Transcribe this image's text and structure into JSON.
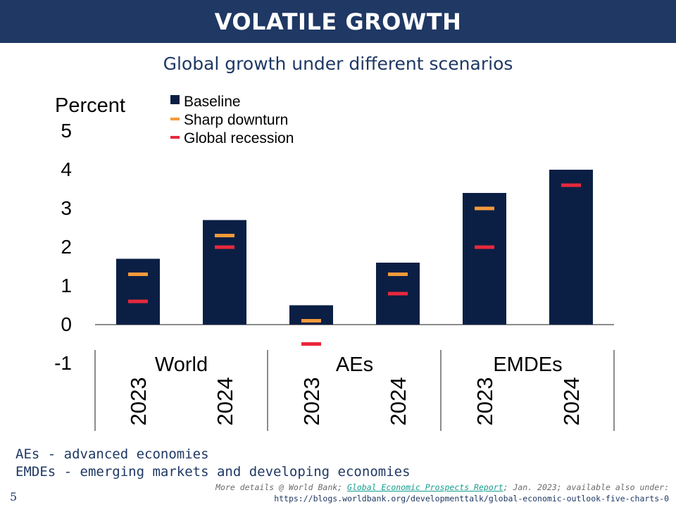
{
  "header": {
    "title": "VOLATILE GROWTH"
  },
  "chart_data": {
    "type": "bar",
    "title": "Global growth under different scenarios",
    "ylabel": "Percent",
    "ylim": [
      -1,
      5
    ],
    "yticks": [
      "5",
      "4",
      "3",
      "2",
      "1",
      "0",
      "-1"
    ],
    "groups": [
      "World",
      "AEs",
      "EMDEs"
    ],
    "categories": [
      "2023",
      "2024",
      "2023",
      "2024",
      "2023",
      "2024"
    ],
    "series": [
      {
        "name": "Baseline",
        "values": [
          1.7,
          2.7,
          0.5,
          1.6,
          3.4,
          4.0
        ],
        "color": "#0b1f45"
      },
      {
        "name": "Sharp downturn",
        "values": [
          1.3,
          2.3,
          0.1,
          1.3,
          3.0,
          3.6
        ],
        "color": "#f59a3a"
      },
      {
        "name": "Global recession",
        "values": [
          0.6,
          2.0,
          -0.5,
          0.8,
          2.0,
          3.6
        ],
        "color": "#e8283c"
      }
    ],
    "legend": "top-left",
    "grid": false
  },
  "notes": [
    "AEs - advanced economies",
    "EMDEs - emerging markets and developing economies"
  ],
  "page_number": "5",
  "source": {
    "prefix": "More details @ World Bank; ",
    "link_text": "Global Economic Prospects Report",
    "suffix": "; Jan. 2023; available also under:",
    "url": "https://blogs.worldbank.org/developmenttalk/global-economic-outlook-five-charts-0"
  }
}
